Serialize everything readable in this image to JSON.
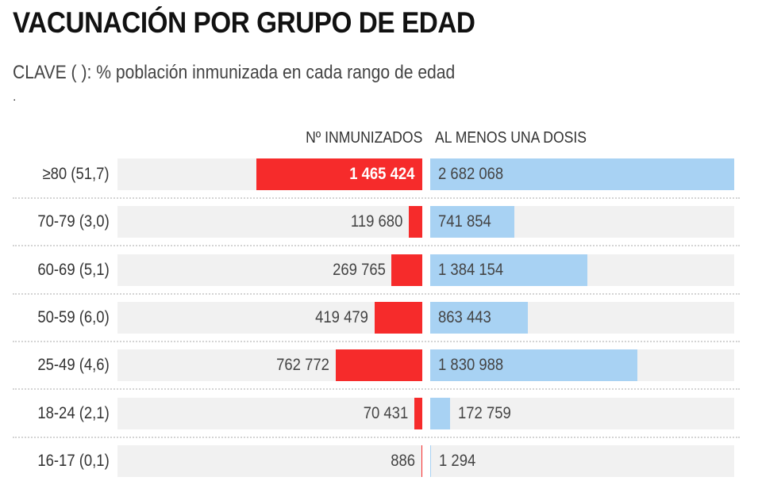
{
  "header": {
    "title": "VACUNACIÓN POR GRUPO DE EDAD",
    "subtitle": "CLAVE ( ): % población inmunizada en cada rango de edad",
    "note": "."
  },
  "colors": {
    "immunized": "#f62b2b",
    "one_dose": "#a8d2f3",
    "track": "#f1f1f1"
  },
  "chart_data": {
    "type": "bar",
    "orientation": "horizontal-diverging",
    "title": "VACUNACIÓN POR GRUPO DE EDAD",
    "subtitle": "CLAVE ( ): % población inmunizada en cada rango de edad",
    "categories": [
      "≥80 (51,7)",
      "70-79 (3,0)",
      "60-69 (5,1)",
      "50-59 (6,0)",
      "25-49 (4,6)",
      "18-24 (2,1)",
      "16-17 (0,1)"
    ],
    "series": [
      {
        "name": "Nº INMUNIZADOS",
        "values": [
          1465424,
          119680,
          269765,
          419479,
          762772,
          70431,
          886
        ],
        "labels": [
          "1 465 424",
          "119 680",
          "269 765",
          "419 479",
          "762 772",
          "70 431",
          "886"
        ]
      },
      {
        "name": "AL MENOS UNA DOSIS",
        "values": [
          2682068,
          741854,
          1384154,
          863443,
          1830988,
          172759,
          1294
        ],
        "labels": [
          "2 682 068",
          "741 854",
          "1 384 154",
          "863 443",
          "1 830 988",
          "172 759",
          "1 294"
        ]
      }
    ],
    "xlim": [
      0,
      2682068
    ],
    "grid": false,
    "legend": "column headers at top"
  }
}
